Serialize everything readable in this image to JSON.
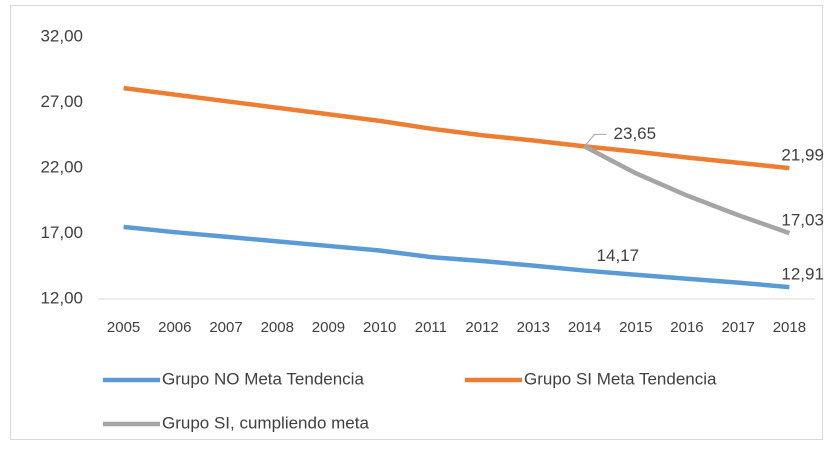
{
  "chart_data": {
    "type": "line",
    "categories": [
      "2005",
      "2006",
      "2007",
      "2008",
      "2009",
      "2010",
      "2011",
      "2012",
      "2013",
      "2014",
      "2015",
      "2016",
      "2017",
      "2018"
    ],
    "series": [
      {
        "name": "Grupo NO Meta Tendencia",
        "color": "#5b9bd5",
        "values": [
          17.5,
          17.1,
          16.75,
          16.4,
          16.05,
          15.7,
          15.2,
          14.9,
          14.55,
          14.17,
          13.85,
          13.55,
          13.25,
          12.91
        ],
        "value_labels": [
          null,
          null,
          null,
          null,
          null,
          null,
          null,
          null,
          null,
          "14,17",
          null,
          null,
          null,
          "12,91"
        ]
      },
      {
        "name": "Grupo SI Meta Tendencia",
        "color": "#ed7d31",
        "values": [
          28.1,
          27.6,
          27.1,
          26.6,
          26.1,
          25.6,
          25.0,
          24.5,
          24.1,
          23.65,
          23.25,
          22.8,
          22.4,
          21.99
        ],
        "value_labels": [
          null,
          null,
          null,
          null,
          null,
          null,
          null,
          null,
          null,
          null,
          null,
          null,
          null,
          "21,99"
        ]
      },
      {
        "name": "Grupo SI, cumpliendo meta",
        "color": "#a5a5a5",
        "values": [
          null,
          null,
          null,
          null,
          null,
          null,
          null,
          null,
          null,
          23.65,
          21.6,
          19.9,
          18.4,
          17.03
        ],
        "value_labels": [
          null,
          null,
          null,
          null,
          null,
          null,
          null,
          null,
          null,
          "23,65",
          null,
          null,
          null,
          "17,03"
        ]
      }
    ],
    "ylim": [
      12,
      32
    ],
    "yticks": [
      {
        "value": 12,
        "label": "12,00"
      },
      {
        "value": 17,
        "label": "17,00"
      },
      {
        "value": 22,
        "label": "22,00"
      },
      {
        "value": 27,
        "label": "27,00"
      },
      {
        "value": 32,
        "label": "32,00"
      }
    ]
  }
}
